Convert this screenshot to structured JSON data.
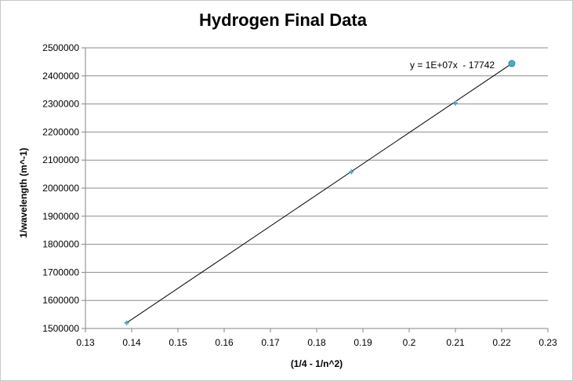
{
  "chart_data": {
    "type": "scatter",
    "title": "Hydrogen Final Data",
    "xlabel": "(1/4 - 1/n^2)",
    "ylabel": "1/wavelength  (m^-1)",
    "xlim": [
      0.13,
      0.23
    ],
    "ylim": [
      1500000,
      2500000
    ],
    "x_ticks": [
      "0.13",
      "0.14",
      "0.15",
      "0.16",
      "0.17",
      "0.18",
      "0.19",
      "0.2",
      "0.21",
      "0.22",
      "0.23"
    ],
    "y_ticks": [
      "1500000",
      "1600000",
      "1700000",
      "1800000",
      "1900000",
      "2000000",
      "2100000",
      "2200000",
      "2300000",
      "2400000",
      "2500000"
    ],
    "grid": "horizontal",
    "series": [
      {
        "x": [
          0.1389,
          0.1875,
          0.21,
          0.2222
        ],
        "y": [
          1520000,
          2058000,
          2303000,
          2444000
        ]
      }
    ],
    "trendline": {
      "type": "linear",
      "equation": "y = 1E+07x  - 17742",
      "x_range": [
        0.1389,
        0.2222
      ],
      "y_range": [
        1520000,
        2444000
      ]
    },
    "colors": {
      "marker": "#4bacc6",
      "trendline": "#000000",
      "grid": "#8c8c8c"
    }
  }
}
